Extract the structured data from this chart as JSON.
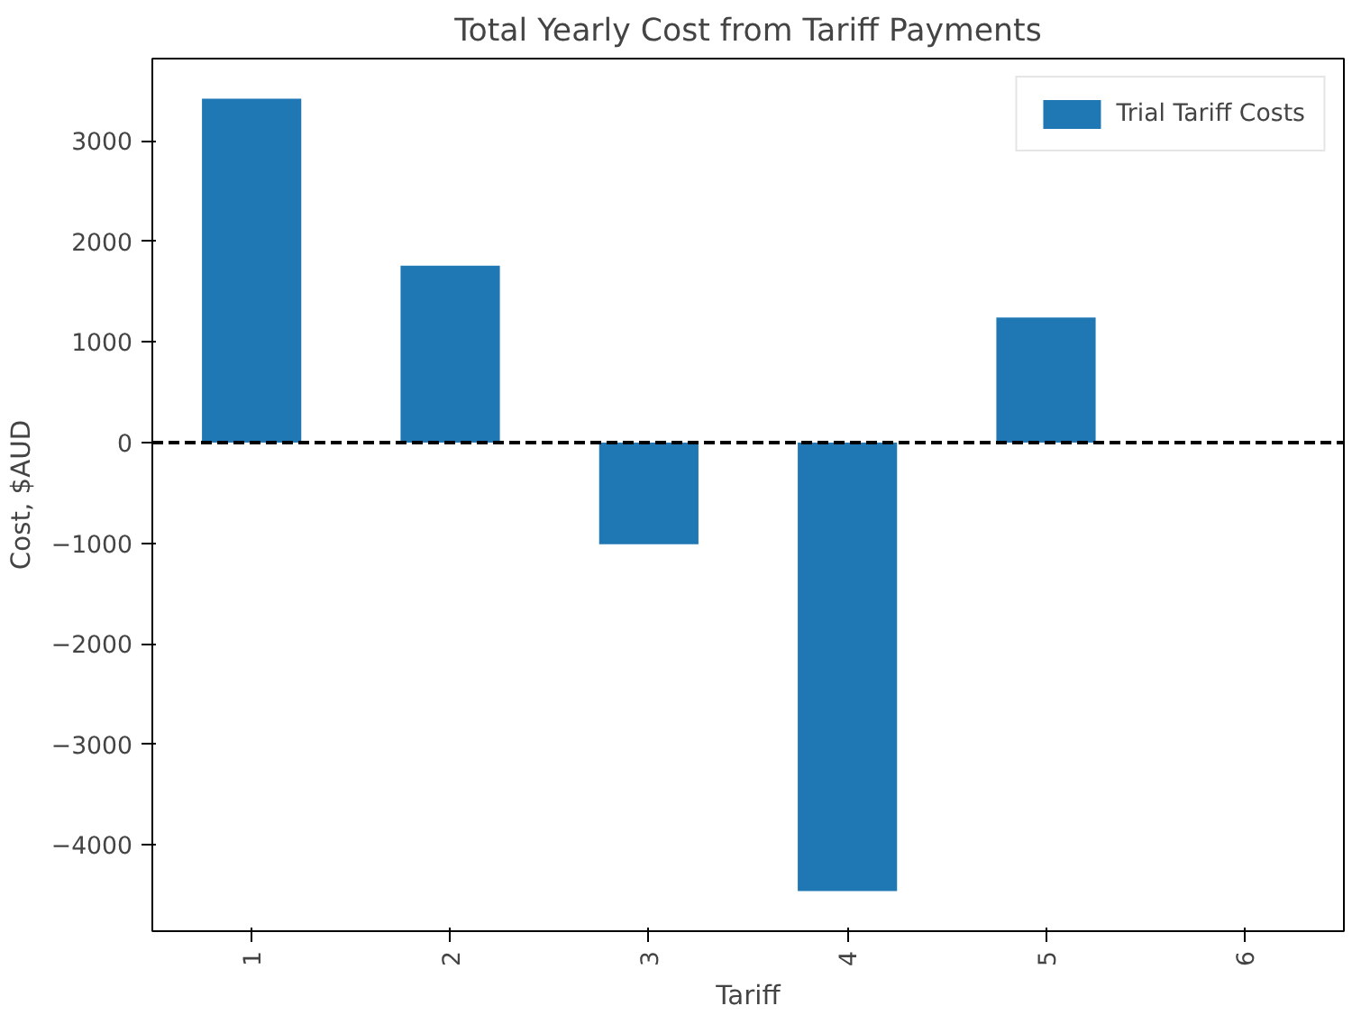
{
  "chart_data": {
    "type": "bar",
    "title": "Total Yearly Cost from Tariff Payments",
    "xlabel": "Tariff",
    "ylabel": "Cost, $AUD",
    "categories": [
      "1",
      "2",
      "3",
      "4",
      "5",
      "6"
    ],
    "series": [
      {
        "name": "Trial Tariff Costs",
        "color": "#1f77b4",
        "values": [
          3420,
          1760,
          -1010,
          -4460,
          1245,
          null
        ]
      }
    ],
    "ylim": [
      -4860,
      3820
    ],
    "yticks": [
      -4000,
      -3000,
      -2000,
      -1000,
      0,
      1000,
      2000,
      3000
    ],
    "ref_lines": [
      {
        "axis": "y",
        "value": 0,
        "color": "#000000",
        "line_style": "dashed"
      }
    ],
    "legend": "top right",
    "grid": false
  }
}
